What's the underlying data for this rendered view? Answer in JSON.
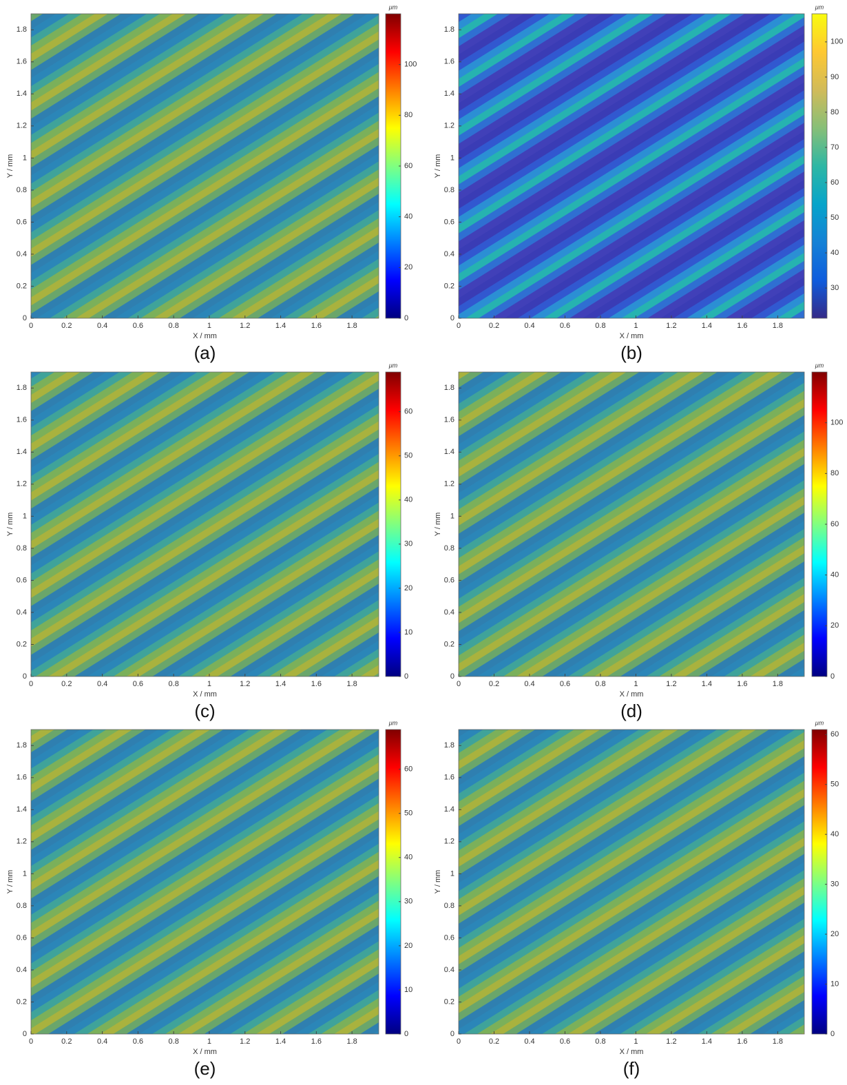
{
  "chart_data": [
    {
      "type": "heatmap",
      "caption": "(a)",
      "xlabel": "X / mm",
      "ylabel": "Y / mm",
      "xlim": [
        0,
        1.95
      ],
      "ylim": [
        0,
        1.9
      ],
      "xticks": [
        0,
        0.2,
        0.4,
        0.6,
        0.8,
        1,
        1.2,
        1.4,
        1.6,
        1.8
      ],
      "yticks": [
        0,
        0.2,
        0.4,
        0.6,
        0.8,
        1,
        1.2,
        1.4,
        1.6,
        1.8
      ],
      "colorbar": {
        "label": "μm",
        "colormap": "jet",
        "clim": [
          0,
          120
        ],
        "ticks": [
          0,
          20,
          40,
          60,
          80,
          100
        ]
      }
    },
    {
      "type": "heatmap",
      "caption": "(b)",
      "xlabel": "X / mm",
      "ylabel": "Y / mm",
      "xlim": [
        0,
        1.95
      ],
      "ylim": [
        0,
        1.9
      ],
      "xticks": [
        0,
        0.2,
        0.4,
        0.6,
        0.8,
        1,
        1.2,
        1.4,
        1.6,
        1.8
      ],
      "yticks": [
        0,
        0.2,
        0.4,
        0.6,
        0.8,
        1,
        1.2,
        1.4,
        1.6,
        1.8
      ],
      "colorbar": {
        "label": "μm",
        "colormap": "parula",
        "clim": [
          21.4,
          108
        ],
        "ticks": [
          30,
          40,
          50,
          60,
          70,
          80,
          90,
          100
        ]
      }
    },
    {
      "type": "heatmap",
      "caption": "(c)",
      "xlabel": "X / mm",
      "ylabel": "Y / mm",
      "xlim": [
        0,
        1.95
      ],
      "ylim": [
        0,
        1.9
      ],
      "xticks": [
        0,
        0.2,
        0.4,
        0.6,
        0.8,
        1,
        1.2,
        1.4,
        1.6,
        1.8
      ],
      "yticks": [
        0,
        0.2,
        0.4,
        0.6,
        0.8,
        1,
        1.2,
        1.4,
        1.6,
        1.8
      ],
      "colorbar": {
        "label": "μm",
        "colormap": "jet",
        "clim": [
          0,
          69
        ],
        "ticks": [
          0,
          10,
          20,
          30,
          40,
          50,
          60
        ]
      }
    },
    {
      "type": "heatmap",
      "caption": "(d)",
      "xlabel": "X / mm",
      "ylabel": "Y / mm",
      "xlim": [
        0,
        1.95
      ],
      "ylim": [
        0,
        1.9
      ],
      "xticks": [
        0,
        0.2,
        0.4,
        0.6,
        0.8,
        1,
        1.2,
        1.4,
        1.6,
        1.8
      ],
      "yticks": [
        0,
        0.2,
        0.4,
        0.6,
        0.8,
        1,
        1.2,
        1.4,
        1.6,
        1.8
      ],
      "colorbar": {
        "label": "μm",
        "colormap": "jet",
        "clim": [
          0,
          120
        ],
        "ticks": [
          0,
          20,
          40,
          60,
          80,
          100
        ]
      }
    },
    {
      "type": "heatmap",
      "caption": "(e)",
      "xlabel": "X / mm",
      "ylabel": "Y / mm",
      "xlim": [
        0,
        1.95
      ],
      "ylim": [
        0,
        1.9
      ],
      "xticks": [
        0,
        0.2,
        0.4,
        0.6,
        0.8,
        1,
        1.2,
        1.4,
        1.6,
        1.8
      ],
      "yticks": [
        0,
        0.2,
        0.4,
        0.6,
        0.8,
        1,
        1.2,
        1.4,
        1.6,
        1.8
      ],
      "colorbar": {
        "label": "μm",
        "colormap": "jet",
        "clim": [
          0,
          69
        ],
        "ticks": [
          0,
          10,
          20,
          30,
          40,
          50,
          60
        ]
      }
    },
    {
      "type": "heatmap",
      "caption": "(f)",
      "xlabel": "X / mm",
      "ylabel": "Y / mm",
      "xlim": [
        0,
        1.95
      ],
      "ylim": [
        0,
        1.9
      ],
      "xticks": [
        0,
        0.2,
        0.4,
        0.6,
        0.8,
        1,
        1.2,
        1.4,
        1.6,
        1.8
      ],
      "yticks": [
        0,
        0.2,
        0.4,
        0.6,
        0.8,
        1,
        1.2,
        1.4,
        1.6,
        1.8
      ],
      "colorbar": {
        "label": "μm",
        "colormap": "jet",
        "clim": [
          0,
          61
        ],
        "ticks": [
          0,
          10,
          20,
          30,
          40,
          50,
          60
        ]
      }
    }
  ]
}
